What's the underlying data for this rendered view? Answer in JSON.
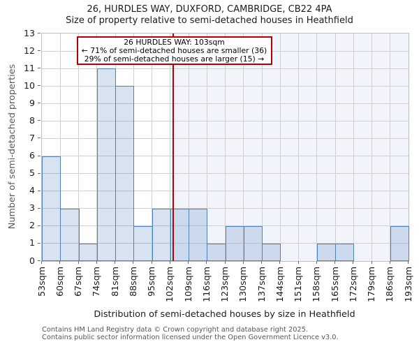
{
  "title": "26, HURDLES WAY, DUXFORD, CAMBRIDGE, CB22 4PA",
  "subtitle": "Size of property relative to semi-detached houses in Heathfield",
  "annotation": {
    "line1": "26 HURDLES WAY: 103sqm",
    "line2": "← 71% of semi-detached houses are smaller (36)",
    "line3": "29% of semi-detached houses are larger (15) →"
  },
  "footer": {
    "line1": "Contains HM Land Registry data © Crown copyright and database right 2025.",
    "line2": "Contains public sector information licensed under the Open Government Licence v3.0."
  },
  "chart_data": {
    "type": "bar",
    "title": "26, HURDLES WAY, DUXFORD, CAMBRIDGE, CB22 4PA",
    "subtitle": "Size of property relative to semi-detached houses in Heathfield",
    "xlabel": "Distribution of semi-detached houses by size in Heathfield",
    "ylabel": "Number of semi-detached properties",
    "categories": [
      "53sqm",
      "60sqm",
      "67sqm",
      "74sqm",
      "81sqm",
      "88sqm",
      "95sqm",
      "102sqm",
      "109sqm",
      "116sqm",
      "123sqm",
      "130sqm",
      "137sqm",
      "144sqm",
      "151sqm",
      "158sqm",
      "165sqm",
      "172sqm",
      "179sqm",
      "186sqm",
      "193sqm"
    ],
    "bin_start_sqm": 53,
    "bin_width_sqm": 7,
    "values": [
      6,
      3,
      1,
      11,
      10,
      2,
      3,
      3,
      3,
      1,
      2,
      2,
      1,
      0,
      0,
      1,
      1,
      0,
      0,
      2
    ],
    "ylim": [
      0,
      13
    ],
    "yticks": [
      0,
      1,
      2,
      3,
      4,
      5,
      6,
      7,
      8,
      9,
      10,
      11,
      12,
      13
    ],
    "grid": true,
    "marker": {
      "value_sqm": 103,
      "smaller_count": 36,
      "smaller_pct": 71,
      "larger_count": 15,
      "larger_pct": 29
    },
    "colors": {
      "bar_fill": "rgba(79,129,189,0.22)",
      "bar_edge": "#4e80bc",
      "grid": "#d0d0d0",
      "shade_right_of_marker": "#f1f4fb",
      "marker": "#b60000",
      "annotation_border": "#b60000"
    }
  }
}
